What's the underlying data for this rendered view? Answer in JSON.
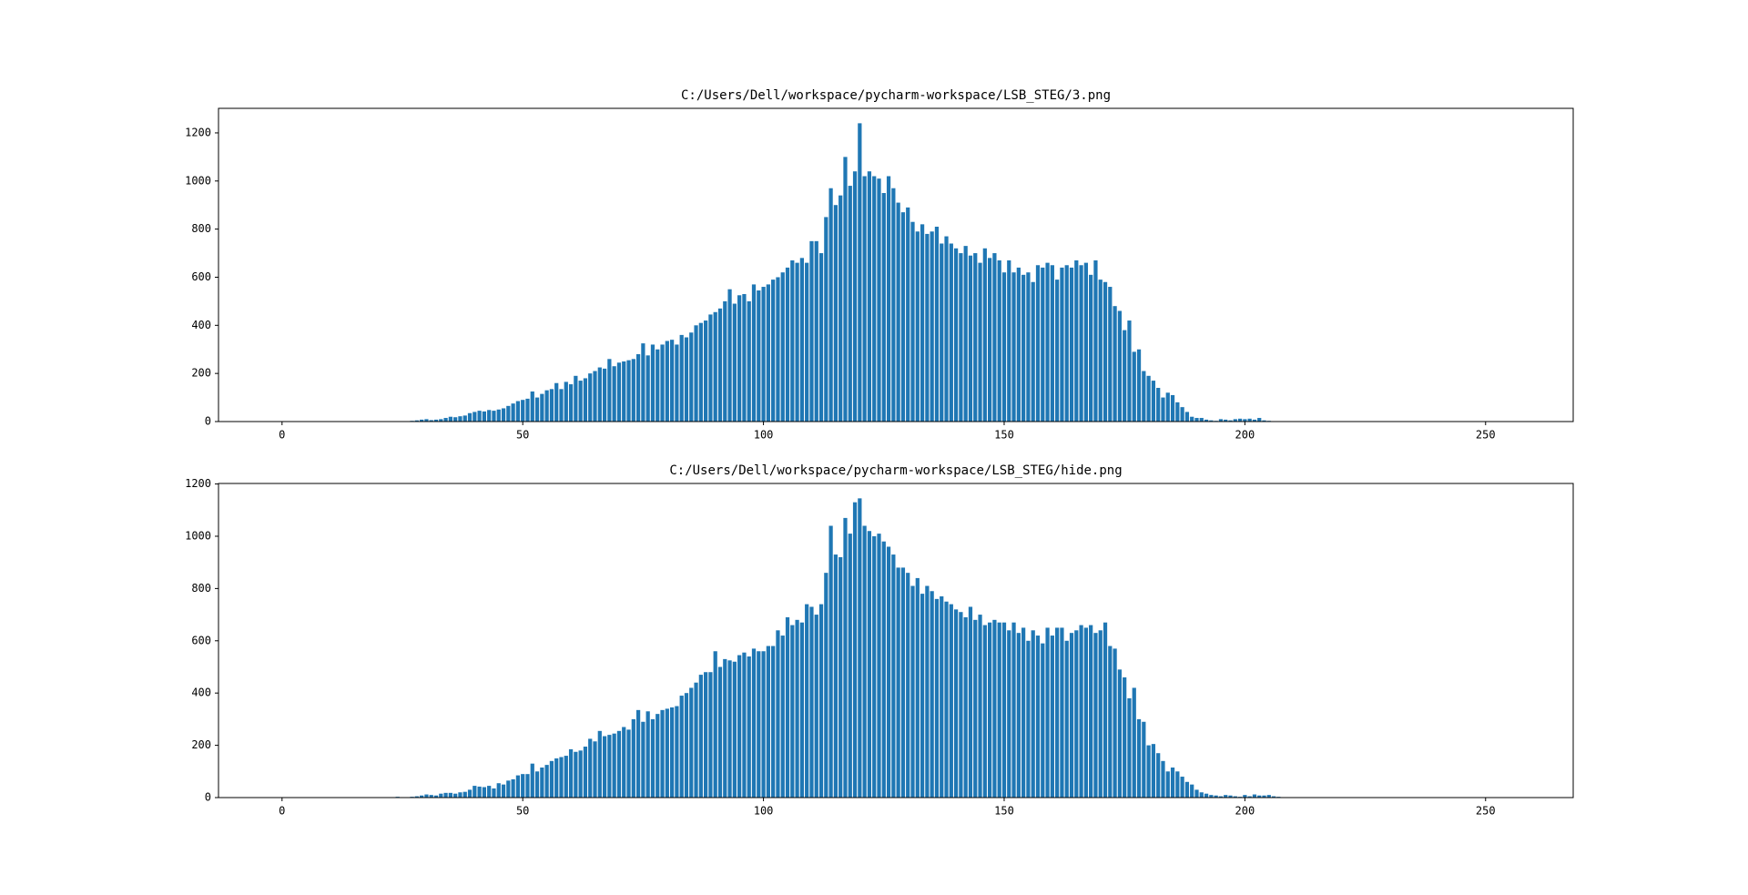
{
  "chart_data": [
    {
      "type": "bar",
      "title": "C:/Users/Dell/workspace/pycharm-workspace/LSB_STEG/3.png",
      "color": "#1f77b4",
      "xlim": [
        -13.2,
        268.2
      ],
      "ylim": [
        0,
        1302
      ],
      "xticks": [
        0,
        50,
        100,
        150,
        200,
        250
      ],
      "yticks": [
        0,
        200,
        400,
        600,
        800,
        1000,
        1200
      ],
      "x": [
        0,
        1,
        2,
        3,
        4,
        5,
        6,
        7,
        8,
        9,
        10,
        11,
        12,
        13,
        14,
        15,
        16,
        17,
        18,
        19,
        20,
        21,
        22,
        23,
        24,
        25,
        26,
        27,
        28,
        29,
        30,
        31,
        32,
        33,
        34,
        35,
        36,
        37,
        38,
        39,
        40,
        41,
        42,
        43,
        44,
        45,
        46,
        47,
        48,
        49,
        50,
        51,
        52,
        53,
        54,
        55,
        56,
        57,
        58,
        59,
        60,
        61,
        62,
        63,
        64,
        65,
        66,
        67,
        68,
        69,
        70,
        71,
        72,
        73,
        74,
        75,
        76,
        77,
        78,
        79,
        80,
        81,
        82,
        83,
        84,
        85,
        86,
        87,
        88,
        89,
        90,
        91,
        92,
        93,
        94,
        95,
        96,
        97,
        98,
        99,
        100,
        101,
        102,
        103,
        104,
        105,
        106,
        107,
        108,
        109,
        110,
        111,
        112,
        113,
        114,
        115,
        116,
        117,
        118,
        119,
        120,
        121,
        122,
        123,
        124,
        125,
        126,
        127,
        128,
        129,
        130,
        131,
        132,
        133,
        134,
        135,
        136,
        137,
        138,
        139,
        140,
        141,
        142,
        143,
        144,
        145,
        146,
        147,
        148,
        149,
        150,
        151,
        152,
        153,
        154,
        155,
        156,
        157,
        158,
        159,
        160,
        161,
        162,
        163,
        164,
        165,
        166,
        167,
        168,
        169,
        170,
        171,
        172,
        173,
        174,
        175,
        176,
        177,
        178,
        179,
        180,
        181,
        182,
        183,
        184,
        185,
        186,
        187,
        188,
        189,
        190,
        191,
        192,
        193,
        194,
        195,
        196,
        197,
        198,
        199,
        200,
        201,
        202,
        203,
        204,
        205,
        206,
        207,
        208,
        209,
        210,
        211,
        212,
        213,
        214,
        215,
        216,
        217,
        218,
        219,
        220,
        221,
        222,
        223,
        224,
        225,
        226,
        227,
        228,
        229,
        230,
        231,
        232,
        233,
        234,
        235,
        236,
        237,
        238,
        239,
        240,
        241,
        242,
        243,
        244,
        245,
        246,
        247,
        248,
        249,
        250,
        251,
        252,
        253,
        254,
        255
      ],
      "values": [
        0,
        0,
        0,
        0,
        0,
        0,
        0,
        0,
        0,
        0,
        0,
        0,
        0,
        0,
        0,
        0,
        0,
        0,
        0,
        0,
        0,
        0,
        0,
        0,
        0,
        0,
        0,
        3,
        5,
        8,
        10,
        6,
        8,
        10,
        15,
        20,
        18,
        22,
        25,
        35,
        40,
        45,
        42,
        48,
        45,
        50,
        55,
        65,
        75,
        85,
        90,
        95,
        125,
        100,
        115,
        130,
        135,
        160,
        135,
        165,
        155,
        190,
        170,
        180,
        200,
        210,
        225,
        220,
        260,
        230,
        245,
        250,
        255,
        260,
        280,
        325,
        275,
        320,
        300,
        320,
        335,
        340,
        320,
        360,
        350,
        370,
        400,
        410,
        420,
        445,
        455,
        470,
        500,
        550,
        490,
        525,
        530,
        500,
        570,
        545,
        560,
        570,
        590,
        600,
        620,
        640,
        670,
        660,
        680,
        660,
        750,
        750,
        700,
        850,
        970,
        900,
        940,
        1100,
        980,
        1040,
        1240,
        1020,
        1040,
        1020,
        1010,
        950,
        1020,
        970,
        910,
        870,
        890,
        830,
        790,
        820,
        780,
        790,
        810,
        740,
        770,
        740,
        720,
        700,
        730,
        690,
        700,
        660,
        720,
        680,
        700,
        670,
        620,
        670,
        620,
        640,
        610,
        620,
        580,
        650,
        640,
        660,
        650,
        590,
        640,
        650,
        640,
        670,
        650,
        660,
        610,
        670,
        590,
        580,
        560,
        480,
        460,
        380,
        420,
        290,
        300,
        210,
        190,
        170,
        140,
        100,
        120,
        110,
        80,
        60,
        40,
        20,
        15,
        15,
        8,
        5,
        3,
        10,
        8,
        5,
        10,
        12,
        10,
        12,
        8,
        15,
        5,
        3,
        0,
        0,
        0,
        0,
        0,
        0,
        0,
        0,
        0,
        0,
        0,
        0,
        0,
        0,
        0,
        0,
        0,
        0,
        0,
        0,
        0,
        0,
        0,
        0,
        0,
        0,
        0,
        0,
        0,
        0,
        0,
        0,
        0,
        0,
        0,
        0,
        0,
        0,
        0,
        0,
        0,
        0,
        0,
        0,
        0,
        0,
        0,
        0,
        0,
        0
      ]
    },
    {
      "type": "bar",
      "title": "C:/Users/Dell/workspace/pycharm-workspace/LSB_STEG/hide.png",
      "color": "#1f77b4",
      "xlim": [
        -13.2,
        268.2
      ],
      "ylim": [
        0,
        1202
      ],
      "xticks": [
        0,
        50,
        100,
        150,
        200,
        250
      ],
      "yticks": [
        0,
        200,
        400,
        600,
        800,
        1000,
        1200
      ],
      "x": [
        0,
        1,
        2,
        3,
        4,
        5,
        6,
        7,
        8,
        9,
        10,
        11,
        12,
        13,
        14,
        15,
        16,
        17,
        18,
        19,
        20,
        21,
        22,
        23,
        24,
        25,
        26,
        27,
        28,
        29,
        30,
        31,
        32,
        33,
        34,
        35,
        36,
        37,
        38,
        39,
        40,
        41,
        42,
        43,
        44,
        45,
        46,
        47,
        48,
        49,
        50,
        51,
        52,
        53,
        54,
        55,
        56,
        57,
        58,
        59,
        60,
        61,
        62,
        63,
        64,
        65,
        66,
        67,
        68,
        69,
        70,
        71,
        72,
        73,
        74,
        75,
        76,
        77,
        78,
        79,
        80,
        81,
        82,
        83,
        84,
        85,
        86,
        87,
        88,
        89,
        90,
        91,
        92,
        93,
        94,
        95,
        96,
        97,
        98,
        99,
        100,
        101,
        102,
        103,
        104,
        105,
        106,
        107,
        108,
        109,
        110,
        111,
        112,
        113,
        114,
        115,
        116,
        117,
        118,
        119,
        120,
        121,
        122,
        123,
        124,
        125,
        126,
        127,
        128,
        129,
        130,
        131,
        132,
        133,
        134,
        135,
        136,
        137,
        138,
        139,
        140,
        141,
        142,
        143,
        144,
        145,
        146,
        147,
        148,
        149,
        150,
        151,
        152,
        153,
        154,
        155,
        156,
        157,
        158,
        159,
        160,
        161,
        162,
        163,
        164,
        165,
        166,
        167,
        168,
        169,
        170,
        171,
        172,
        173,
        174,
        175,
        176,
        177,
        178,
        179,
        180,
        181,
        182,
        183,
        184,
        185,
        186,
        187,
        188,
        189,
        190,
        191,
        192,
        193,
        194,
        195,
        196,
        197,
        198,
        199,
        200,
        201,
        202,
        203,
        204,
        205,
        206,
        207,
        208,
        209,
        210,
        211,
        212,
        213,
        214,
        215,
        216,
        217,
        218,
        219,
        220,
        221,
        222,
        223,
        224,
        225,
        226,
        227,
        228,
        229,
        230,
        231,
        232,
        233,
        234,
        235,
        236,
        237,
        238,
        239,
        240,
        241,
        242,
        243,
        244,
        245,
        246,
        247,
        248,
        249,
        250,
        251,
        252,
        253,
        254,
        255
      ],
      "values": [
        0,
        0,
        0,
        0,
        0,
        0,
        0,
        0,
        0,
        0,
        0,
        0,
        0,
        0,
        0,
        0,
        0,
        0,
        0,
        0,
        0,
        0,
        0,
        0,
        3,
        0,
        0,
        3,
        5,
        8,
        12,
        10,
        8,
        15,
        18,
        18,
        15,
        20,
        22,
        30,
        45,
        42,
        40,
        45,
        35,
        55,
        50,
        65,
        70,
        85,
        90,
        90,
        130,
        100,
        115,
        125,
        140,
        150,
        155,
        160,
        185,
        175,
        180,
        195,
        225,
        215,
        255,
        235,
        240,
        245,
        255,
        270,
        260,
        300,
        335,
        290,
        330,
        300,
        320,
        335,
        340,
        345,
        350,
        390,
        400,
        420,
        440,
        470,
        480,
        480,
        560,
        500,
        530,
        525,
        520,
        545,
        555,
        540,
        570,
        560,
        560,
        580,
        580,
        640,
        620,
        690,
        660,
        680,
        670,
        740,
        730,
        700,
        740,
        860,
        1040,
        930,
        920,
        1070,
        1010,
        1130,
        1145,
        1040,
        1020,
        1000,
        1010,
        980,
        960,
        930,
        880,
        880,
        860,
        810,
        840,
        780,
        810,
        790,
        760,
        770,
        750,
        740,
        720,
        710,
        690,
        730,
        680,
        700,
        660,
        670,
        680,
        670,
        670,
        640,
        670,
        630,
        650,
        600,
        640,
        620,
        590,
        650,
        620,
        650,
        650,
        600,
        630,
        640,
        660,
        650,
        660,
        630,
        640,
        670,
        580,
        570,
        490,
        460,
        380,
        420,
        300,
        290,
        200,
        205,
        170,
        140,
        100,
        115,
        100,
        80,
        60,
        50,
        30,
        20,
        15,
        10,
        8,
        5,
        10,
        8,
        5,
        3,
        10,
        5,
        12,
        8,
        8,
        10,
        5,
        3,
        0,
        0,
        0,
        0,
        0,
        0,
        0,
        0,
        0,
        0,
        0,
        0,
        0,
        0,
        0,
        0,
        0,
        0,
        0,
        0,
        0,
        0,
        0,
        0,
        0,
        0,
        0,
        0,
        0,
        0,
        0,
        0,
        0,
        0,
        0,
        0,
        0,
        0,
        0,
        0,
        0,
        0,
        0,
        0,
        0,
        0,
        0,
        0
      ]
    }
  ]
}
